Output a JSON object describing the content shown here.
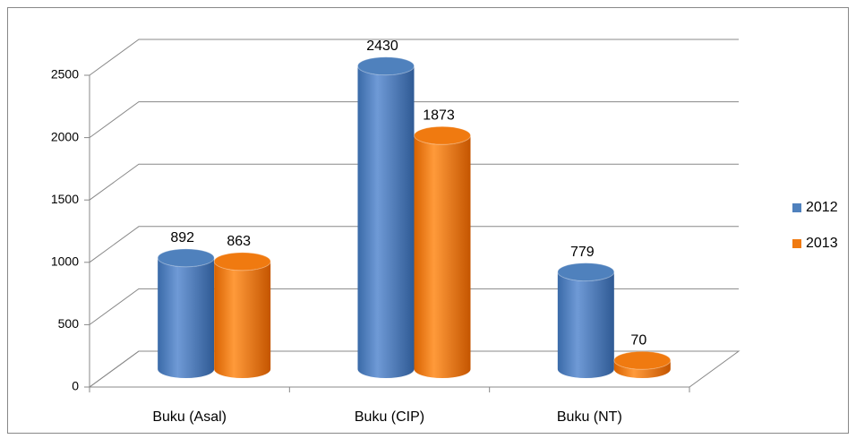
{
  "chart_data": {
    "type": "bar3d",
    "categories": [
      "Buku (Asal)",
      "Buku (CIP)",
      "Buku (NT)"
    ],
    "series": [
      {
        "name": "2012",
        "color": "#4f81bd",
        "values": [
          892,
          2430,
          779
        ]
      },
      {
        "name": "2013",
        "color": "#f07a10",
        "values": [
          863,
          1873,
          70
        ]
      }
    ],
    "ylim": [
      0,
      2500
    ],
    "yticks": [
      0,
      500,
      1000,
      1500,
      2000,
      2500
    ],
    "grid": true,
    "legend": "right"
  }
}
